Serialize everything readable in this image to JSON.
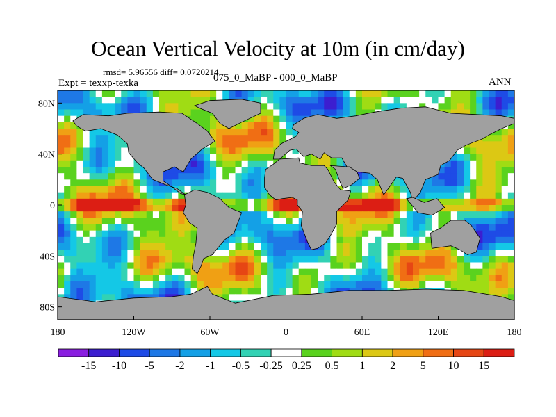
{
  "chart_data": {
    "type": "heatmap",
    "title": "Ocean Vertical Velocity at 10m (in cm/day)",
    "stats": "rmsd= 5.96556  diff= 0.0720214",
    "left_string": "Expt = texxp-texka",
    "center_string": "075_0_MaBP - 000_0_MaBP",
    "right_string": "ANN",
    "x_ticks": [
      "180",
      "120W",
      "60W",
      "0",
      "60E",
      "120E",
      "180"
    ],
    "x_tick_values": [
      -180,
      -120,
      -60,
      0,
      60,
      120,
      180
    ],
    "y_ticks": [
      "80N",
      "40N",
      "0",
      "40S",
      "80S"
    ],
    "y_tick_values": [
      80,
      40,
      0,
      -40,
      -80
    ],
    "xlim": [
      -180,
      180
    ],
    "ylim": [
      -90,
      90
    ],
    "land_color": "#a0a0a0",
    "colorbar": {
      "labels": [
        "-15",
        "-10",
        "-5",
        "-2",
        "-1",
        "-0.5",
        "-0.25",
        "0.25",
        "0.5",
        "1",
        "2",
        "5",
        "10",
        "15"
      ],
      "colors": [
        "#8a1ee0",
        "#3c1ed0",
        "#1e4be6",
        "#1e78e6",
        "#14a0e6",
        "#14c8e6",
        "#32d2b4",
        "#ffffff",
        "#5ad21e",
        "#a0dc14",
        "#dcc814",
        "#f0a014",
        "#f06e14",
        "#e64614",
        "#dc1e14"
      ]
    }
  }
}
